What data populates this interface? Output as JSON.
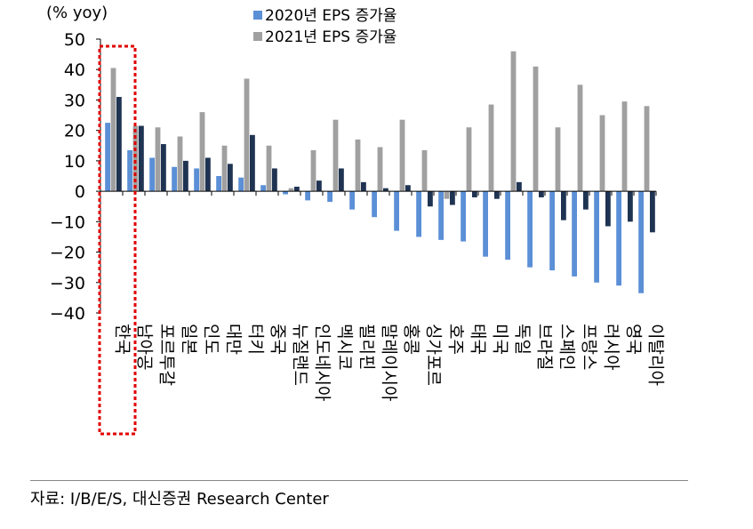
{
  "chart_data": {
    "type": "bar",
    "unit_label": "(% yoy)",
    "ylim": [
      -40,
      50
    ],
    "yticks": [
      50,
      40,
      30,
      20,
      10,
      0,
      -10,
      -20,
      -30,
      -40
    ],
    "categories": [
      "한국",
      "남아공",
      "포르투갈",
      "일본",
      "인도",
      "대만",
      "터키",
      "중국",
      "뉴질랜드",
      "인도네시아",
      "멕시코",
      "필리핀",
      "말레이시아",
      "홍콩",
      "싱가포르",
      "호주",
      "태국",
      "미국",
      "독일",
      "브라질",
      "스페인",
      "프랑스",
      "러시아",
      "영국",
      "이탈리아"
    ],
    "series": [
      {
        "name": "2020년 EPS 증가율",
        "color": "#5b8fd6",
        "values": [
          22.5,
          13.5,
          11,
          8,
          7.5,
          5,
          4.5,
          2,
          -1,
          -3,
          -3.5,
          -6,
          -8.5,
          -13,
          -15,
          -16,
          -16.5,
          -21.5,
          -22.5,
          -25,
          -26,
          -28,
          -30,
          -31,
          -33.5
        ]
      },
      {
        "name": "2021년 EPS 증가율",
        "color": "#a0a0a0",
        "values": [
          40.5,
          21.5,
          21,
          18,
          26,
          15,
          37,
          15,
          1,
          13.5,
          23.5,
          17,
          14.5,
          23.5,
          13.5,
          -2.5,
          21,
          28.5,
          46,
          41,
          21,
          35,
          25,
          29.5,
          28
        ]
      },
      {
        "name": "",
        "color": "#1f3352",
        "values": [
          31,
          21.5,
          15.5,
          10,
          11,
          9,
          18.5,
          7.5,
          1.5,
          3.5,
          7.5,
          3,
          1,
          2,
          -5,
          -4.5,
          -2,
          -2.5,
          3,
          -2,
          -9.5,
          -6,
          -11.5,
          -10,
          -13.5
        ]
      }
    ],
    "legend_placement": "top-center",
    "grid": false
  },
  "highlight": {
    "category": "한국",
    "style": "dotted-red-box"
  },
  "source": "자료: I/B/E/S, 대신증권 Research Center"
}
